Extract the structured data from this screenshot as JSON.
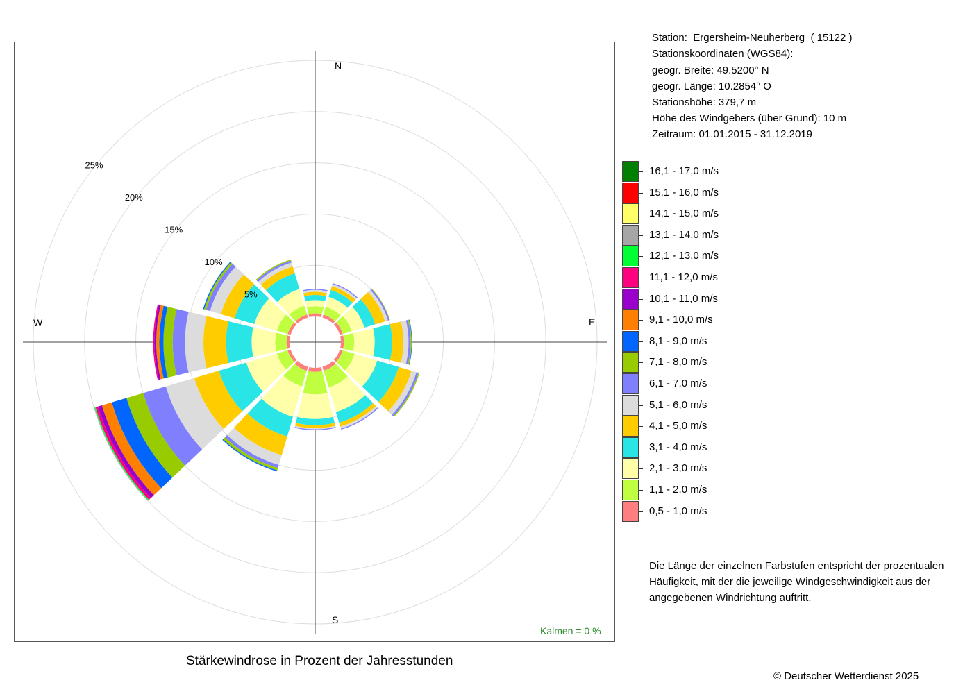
{
  "station": {
    "station_line": "Station:  Ergersheim-Neuherberg  ( 15122 )",
    "coords_heading": "Stationskoordinaten (WGS84):",
    "latitude": "geogr. Breite: 49.5200° N",
    "longitude": "geogr. Länge: 10.2854° O",
    "elevation": "Stationshöhe: 379,7 m",
    "sensor_height": "Höhe des Windgebers (über Grund): 10 m",
    "period": "Zeitraum: 01.01.2015 - 31.12.2019"
  },
  "explanation": "Die Länge der einzelnen Farbstufen entspricht der prozentualen Häufigkeit, mit der die jeweilige Windgeschwindigkeit aus der angegebenen Windrichtung auftritt.",
  "title": "Stärkewindrose in Prozent der Jahresstunden",
  "copyright": "© Deutscher Wetterdienst  2025",
  "calm_label": "Kalmen  =  0 %",
  "compass": {
    "n": "N",
    "e": "E",
    "s": "S",
    "w": "W"
  },
  "colors": {
    "calm_text": "#2e8b2e",
    "grid": "#dddddd",
    "axis": "#444444"
  },
  "chart_data": {
    "type": "wind_rose",
    "title": "Stärkewindrose in Prozent der Jahresstunden",
    "calm_percent": 0,
    "ring_labels": [
      "5%",
      "10%",
      "15%",
      "20%",
      "25%"
    ],
    "rings": [
      5,
      10,
      15,
      20,
      25
    ],
    "directions_deg": [
      0,
      30,
      60,
      90,
      120,
      150,
      180,
      210,
      240,
      270,
      300,
      330
    ],
    "bins": [
      {
        "label": "0,5 - 1,0 m/s",
        "color": "#ff7f7f"
      },
      {
        "label": "1,1 - 2,0 m/s",
        "color": "#bfff3f"
      },
      {
        "label": "2,1 - 3,0 m/s",
        "color": "#ffffaa"
      },
      {
        "label": "3,1 - 4,0 m/s",
        "color": "#2ae5e5"
      },
      {
        "label": "4,1 - 5,0 m/s",
        "color": "#ffcc00"
      },
      {
        "label": "5,1 - 6,0 m/s",
        "color": "#dcdcdc"
      },
      {
        "label": "6,1 - 7,0 m/s",
        "color": "#8080ff"
      },
      {
        "label": "7,1 - 8,0 m/s",
        "color": "#99cc00"
      },
      {
        "label": "8,1 - 9,0 m/s",
        "color": "#0066ff"
      },
      {
        "label": "9,1 - 10,0 m/s",
        "color": "#ff8000"
      },
      {
        "label": "10,1 - 11,0 m/s",
        "color": "#9900cc"
      },
      {
        "label": "11,1 - 12,0 m/s",
        "color": "#ff0080"
      },
      {
        "label": "12,1 - 13,0 m/s",
        "color": "#00ff33"
      },
      {
        "label": "13,1 - 14,0 m/s",
        "color": "#a6a6a6"
      },
      {
        "label": "14,1 - 15,0 m/s",
        "color": "#ffff66"
      },
      {
        "label": "15,1 - 16,0 m/s",
        "color": "#ff0000"
      },
      {
        "label": "16,1 - 17,0 m/s",
        "color": "#008000"
      }
    ],
    "series": [
      {
        "direction": 0,
        "values": [
          0.3,
          0.7,
          0.6,
          0.5,
          0.3,
          0.2,
          0.1,
          0,
          0,
          0,
          0,
          0,
          0,
          0,
          0,
          0,
          0
        ]
      },
      {
        "direction": 30,
        "values": [
          0.3,
          0.8,
          1.0,
          0.7,
          0.4,
          0.2,
          0.1,
          0,
          0,
          0,
          0,
          0,
          0,
          0,
          0,
          0,
          0
        ]
      },
      {
        "direction": 60,
        "values": [
          0.3,
          0.9,
          1.3,
          1.1,
          1.0,
          0.3,
          0.15,
          0.05,
          0,
          0,
          0,
          0,
          0,
          0,
          0,
          0,
          0
        ]
      },
      {
        "direction": 90,
        "values": [
          0.3,
          1.0,
          2.0,
          1.7,
          1.1,
          0.5,
          0.2,
          0.1,
          0.05,
          0,
          0,
          0,
          0,
          0,
          0,
          0,
          0
        ]
      },
      {
        "direction": 120,
        "values": [
          0.3,
          1.2,
          2.3,
          2.2,
          1.3,
          0.5,
          0.2,
          0.1,
          0,
          0,
          0,
          0,
          0,
          0,
          0,
          0,
          0
        ]
      },
      {
        "direction": 150,
        "values": [
          0.4,
          1.7,
          2.5,
          1.1,
          0.4,
          0.2,
          0.1,
          0,
          0,
          0,
          0,
          0,
          0,
          0,
          0,
          0,
          0
        ]
      },
      {
        "direction": 180,
        "values": [
          0.4,
          2.2,
          2.4,
          0.6,
          0.3,
          0.1,
          0.1,
          0,
          0,
          0,
          0,
          0,
          0,
          0,
          0,
          0,
          0
        ]
      },
      {
        "direction": 210,
        "values": [
          0.4,
          1.6,
          3.1,
          2.0,
          1.9,
          1.0,
          0.3,
          0.25,
          0.1,
          0,
          0,
          0,
          0,
          0,
          0,
          0,
          0
        ]
      },
      {
        "direction": 240,
        "values": [
          0.3,
          1.1,
          3.1,
          2.8,
          2.5,
          2.9,
          2.3,
          1.7,
          1.5,
          1.0,
          0.4,
          0.25,
          0.1,
          0.05,
          0,
          0,
          0
        ]
      },
      {
        "direction": 270,
        "values": [
          0.3,
          1.1,
          2.3,
          2.5,
          2.2,
          1.8,
          1.2,
          0.9,
          0.4,
          0.3,
          0.2,
          0.1,
          0,
          0,
          0,
          0,
          0
        ]
      },
      {
        "direction": 300,
        "values": [
          0.3,
          1.1,
          2.3,
          2.0,
          1.4,
          1.1,
          0.4,
          0.2,
          0.1,
          0,
          0,
          0,
          0,
          0,
          0,
          0,
          0
        ]
      },
      {
        "direction": 330,
        "values": [
          0.3,
          0.9,
          1.7,
          1.6,
          0.7,
          0.4,
          0.2,
          0.1,
          0,
          0,
          0,
          0,
          0,
          0,
          0,
          0,
          0
        ]
      }
    ]
  }
}
